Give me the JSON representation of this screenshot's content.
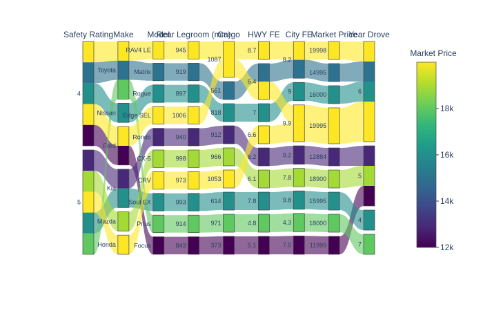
{
  "chart_data": {
    "type": "parallel_categories",
    "dimensions": [
      {
        "title": "Safety Rating",
        "categories": [
          "4",
          "5"
        ]
      },
      {
        "title": "Make",
        "categories": [
          "Toyota",
          "Nissan",
          "Ford",
          "Kia",
          "Mazda",
          "Honda"
        ]
      },
      {
        "title": "Model",
        "categories": [
          "RAV4 LE",
          "Matrix",
          "Rogue",
          "Edge SEL",
          "Rondo",
          "CX-5",
          "CRV",
          "Soul EX",
          "Prius",
          "Focus"
        ]
      },
      {
        "title": "Rear Legroom (mm)",
        "categories": [
          "945",
          "919",
          "897",
          "1006",
          "940",
          "998",
          "973",
          "993",
          "914",
          "843"
        ]
      },
      {
        "title": "Cargo",
        "categories": [
          "1087",
          "561",
          "818",
          "912",
          "966",
          "1053",
          "614",
          "971",
          "373"
        ]
      },
      {
        "title": "HWY FE",
        "categories": [
          "8.7",
          "6.4",
          "7",
          "6.6",
          "6.2",
          "6.1",
          "7.8",
          "4.8",
          "5.1"
        ]
      },
      {
        "title": "City FE",
        "categories": [
          "8.2",
          "9",
          "9.9",
          "9.2",
          "7.8",
          "9.8",
          "4.3",
          "7.5"
        ]
      },
      {
        "title": "Market Price",
        "categories": [
          "19998",
          "14995",
          "16000",
          "19995",
          "12884",
          "18900",
          "15995",
          "18000",
          "11999"
        ]
      },
      {
        "title": "Year Drove",
        "categories": [
          "6",
          "5",
          "4",
          "7"
        ]
      }
    ],
    "records": [
      {
        "safety": "4",
        "make": "Toyota",
        "model": "RAV4 LE",
        "rear_legroom": "945",
        "cargo": "1087",
        "hwy_fe": "8.7",
        "city_fe": "8.2",
        "market_price": 19998,
        "year_drove": "6"
      },
      {
        "safety": "4",
        "make": "Toyota",
        "model": "Matrix",
        "rear_legroom": "919",
        "cargo": "561",
        "hwy_fe": "6.4",
        "city_fe": "8.2",
        "market_price": 14995,
        "year_drove": "6"
      },
      {
        "safety": "4",
        "make": "Nissan",
        "model": "Rogue",
        "rear_legroom": "897",
        "cargo": "818",
        "hwy_fe": "7",
        "city_fe": "9",
        "market_price": 16000,
        "year_drove": "6"
      },
      {
        "safety": "4",
        "make": "Ford",
        "model": "Edge SEL",
        "rear_legroom": "1006",
        "cargo": "1087",
        "hwy_fe": "6.4",
        "city_fe": "9.9",
        "market_price": 19995,
        "year_drove": "6"
      },
      {
        "safety": "5",
        "make": "Kia",
        "model": "Rondo",
        "rear_legroom": "940",
        "cargo": "912",
        "hwy_fe": "6.2",
        "city_fe": "9.2",
        "market_price": 12884,
        "year_drove": "5"
      },
      {
        "safety": "5",
        "make": "Mazda",
        "model": "CX-5",
        "rear_legroom": "998",
        "cargo": "966",
        "hwy_fe": "6.1",
        "city_fe": "7.8",
        "market_price": 18900,
        "year_drove": "5"
      },
      {
        "safety": "5",
        "make": "Honda",
        "model": "CRV",
        "rear_legroom": "973",
        "cargo": "1053",
        "hwy_fe": "6.6",
        "city_fe": "9.9",
        "market_price": 19995,
        "year_drove": "6"
      },
      {
        "safety": "5",
        "make": "Kia",
        "model": "Soul EX",
        "rear_legroom": "993",
        "cargo": "614",
        "hwy_fe": "7.8",
        "city_fe": "9.8",
        "market_price": 15995,
        "year_drove": "4"
      },
      {
        "safety": "5",
        "make": "Toyota",
        "model": "Prius",
        "rear_legroom": "914",
        "cargo": "971",
        "hwy_fe": "4.8",
        "city_fe": "4.3",
        "market_price": 18000,
        "year_drove": "7"
      },
      {
        "safety": "4",
        "make": "Ford",
        "model": "Focus",
        "rear_legroom": "843",
        "cargo": "373",
        "hwy_fe": "5.1",
        "city_fe": "7.5",
        "market_price": 11999,
        "year_drove": "5"
      }
    ],
    "color": {
      "by": "market_price",
      "colorscale": "Viridis",
      "colorscale_stops": [
        "#440154",
        "#482878",
        "#3e4989",
        "#31688e",
        "#26828e",
        "#1f9e89",
        "#35b779",
        "#6ece58",
        "#b5de2b",
        "#fde725"
      ],
      "cmin": 11999,
      "cmax": 19998,
      "colorbar": {
        "title": "Market Price",
        "ticks": [
          "12k",
          "14k",
          "16k",
          "18k"
        ],
        "tickvals": [
          12000,
          14000,
          16000,
          18000
        ]
      }
    },
    "line_opacity": 0.6
  }
}
